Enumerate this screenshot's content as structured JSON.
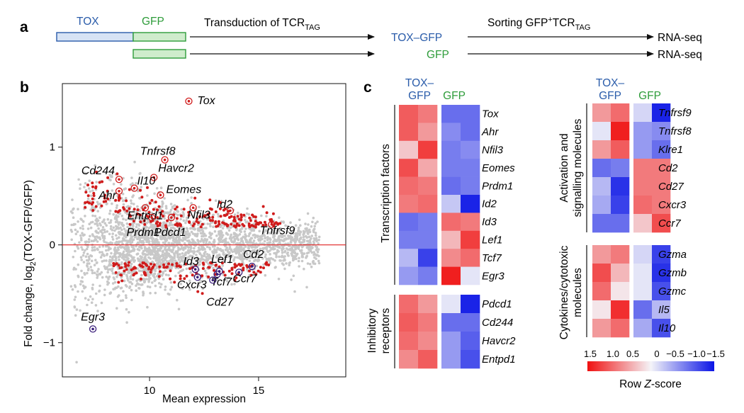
{
  "panel_a": {
    "letter": "a",
    "construct_tox": "TOX",
    "construct_gfp": "GFP",
    "transduction_prefix": "Transduction of TCR",
    "transduction_sub": "TAG",
    "product_tox_gfp": "TOX–GFP",
    "product_gfp": "GFP",
    "sorting_prefix": "Sorting GFP",
    "sorting_sup": "+",
    "sorting_mid": "TCR",
    "sorting_sub": "TAG",
    "readout_1": "RNA-seq",
    "readout_2": "RNA-seq",
    "colors": {
      "tox": "#2a5caa",
      "gfp": "#2e9c3a",
      "tox_box": "#d7e3f5",
      "gfp_box": "#cfeccc"
    }
  },
  "panel_b": {
    "letter": "b",
    "ylabel_prefix": "Fold change, log",
    "ylabel_sub": "2",
    "ylabel_suffix": "(TOX-GFP/GFP)",
    "xlabel": "Mean expression",
    "chart_data": {
      "type": "scatter",
      "xlim": [
        6,
        19
      ],
      "ylim": [
        -1.35,
        1.65
      ],
      "xticks": [
        10,
        15
      ],
      "yticks": [
        -1,
        0,
        1
      ],
      "xtick_labels": [
        "10",
        "15"
      ],
      "ytick_labels": [
        "−1",
        "0",
        "1"
      ],
      "reference_line_y": 0,
      "labeled_genes": [
        {
          "name": "Tox",
          "x": 11.8,
          "y": 1.47
        },
        {
          "name": "Tnfrsf8",
          "x": 10.7,
          "y": 0.87
        },
        {
          "name": "Havcr2",
          "x": 10.2,
          "y": 0.69
        },
        {
          "name": "Cd244",
          "x": 8.6,
          "y": 0.67
        },
        {
          "name": "Il10",
          "x": 9.3,
          "y": 0.58
        },
        {
          "name": "Eomes",
          "x": 10.5,
          "y": 0.51
        },
        {
          "name": "Ahr",
          "x": 8.6,
          "y": 0.55
        },
        {
          "name": "Entpd1",
          "x": 9.8,
          "y": 0.38
        },
        {
          "name": "Nfil3",
          "x": 12.0,
          "y": 0.38
        },
        {
          "name": "Id2",
          "x": 13.7,
          "y": 0.35
        },
        {
          "name": "Prdm1",
          "x": 10.1,
          "y": 0.28
        },
        {
          "name": "Pdcd1",
          "x": 11.0,
          "y": 0.28
        },
        {
          "name": "Tnfrsf9",
          "x": 15.6,
          "y": 0.21
        },
        {
          "name": "Id3",
          "x": 12.1,
          "y": -0.25
        },
        {
          "name": "Lef1",
          "x": 13.2,
          "y": -0.27
        },
        {
          "name": "Cd2",
          "x": 14.7,
          "y": -0.22
        },
        {
          "name": "Cxcr3",
          "x": 12.2,
          "y": -0.33
        },
        {
          "name": "Tcf7",
          "x": 13.1,
          "y": -0.3
        },
        {
          "name": "Ccr7",
          "x": 14.1,
          "y": -0.28
        },
        {
          "name": "Cd27",
          "x": 12.9,
          "y": -0.36
        },
        {
          "name": "Egr3",
          "x": 7.4,
          "y": -0.86
        }
      ],
      "colors": {
        "background_points": "#c8c8c8",
        "significant_points": "#d01c1c",
        "highlight_ring_up": "#d01c1c",
        "highlight_ring_down": "#3a1e7a",
        "zero_line": "#e02020"
      }
    }
  },
  "panel_c": {
    "letter": "c",
    "col_tox_1": "TOX–",
    "col_tox_2": "GFP",
    "col_gfp": "GFP",
    "groups": [
      {
        "label_1": "Transcription factors",
        "label_2": "",
        "genes": [
          "Tox",
          "Ahr",
          "Nfil3",
          "Eomes",
          "Prdm1",
          "Id2",
          "Id3",
          "Lef1",
          "Tcf7",
          "Egr3"
        ]
      },
      {
        "label_1": "Inhibitory",
        "label_2": "receptors",
        "genes": [
          "Pdcd1",
          "Cd244",
          "Havcr2",
          "Entpd1"
        ]
      },
      {
        "label_1": "Activation and",
        "label_2": "signalling molecules",
        "genes": [
          "Tnfrsf9",
          "Tnfrsf8",
          "Klre1",
          "Cd2",
          "Cd27",
          "Cxcr3",
          "Ccr7"
        ]
      },
      {
        "label_1": "Cytokines/cytotoxic",
        "label_2": "molecules",
        "genes": [
          "Gzma",
          "Gzmb",
          "Gzmc",
          "Il5",
          "Il10"
        ]
      }
    ],
    "chart_data": {
      "type": "heatmap",
      "columns": [
        "TOX–GFP rep 1",
        "TOX–GFP rep 2",
        "GFP rep 1",
        "GFP rep 2"
      ],
      "value_range": [
        -1.5,
        1.5
      ],
      "rows": {
        "Tox": [
          1.0,
          0.8,
          -0.9,
          -0.9
        ],
        "Ahr": [
          1.0,
          0.6,
          -0.7,
          -0.9
        ],
        "Nfil3": [
          0.3,
          1.2,
          -0.8,
          -0.7
        ],
        "Eomes": [
          1.1,
          0.5,
          -0.8,
          -0.8
        ],
        "Prdm1": [
          0.9,
          0.8,
          -0.9,
          -0.8
        ],
        "Id2": [
          0.8,
          0.9,
          -0.3,
          -1.4
        ],
        "Id3": [
          -0.9,
          -0.8,
          0.9,
          0.8
        ],
        "Lef1": [
          -0.8,
          -0.8,
          0.4,
          1.2
        ],
        "Tcf7": [
          -0.4,
          -1.2,
          0.7,
          0.9
        ],
        "Egr3": [
          -0.6,
          -0.8,
          1.4,
          -0.1
        ],
        "Pdcd1": [
          0.9,
          0.6,
          -0.1,
          -1.4
        ],
        "Cd244": [
          1.0,
          0.8,
          -0.9,
          -0.9
        ],
        "Havcr2": [
          0.9,
          0.7,
          -0.6,
          -1.0
        ],
        "Entpd1": [
          0.7,
          1.0,
          -0.6,
          -1.1
        ],
        "Tnfrsf9": [
          0.6,
          0.9,
          -0.2,
          -1.4
        ],
        "Tnfrsf8": [
          -0.1,
          1.4,
          -0.6,
          -0.7
        ],
        "Klre1": [
          0.6,
          1.0,
          -0.6,
          -0.9
        ],
        "Cd2": [
          -0.9,
          -0.8,
          0.8,
          0.8
        ],
        "Cd27": [
          -0.4,
          -1.3,
          0.8,
          0.8
        ],
        "Cxcr3": [
          -0.5,
          -1.2,
          0.9,
          0.8
        ],
        "Ccr7": [
          -0.9,
          -0.9,
          0.3,
          1.1
        ],
        "Gzma": [
          0.6,
          0.8,
          -0.2,
          -1.2
        ],
        "Gzmb": [
          1.1,
          0.4,
          -0.1,
          -1.3
        ],
        "Gzmc": [
          0.9,
          0.1,
          -0.1,
          -1.1
        ],
        "Il5": [
          0.1,
          1.3,
          -0.9,
          -0.4
        ],
        "Il10": [
          0.6,
          0.9,
          -0.5,
          -1.1
        ]
      },
      "colors": {
        "high": "#f01010",
        "mid": "#f4f4f8",
        "low": "#0a14e6"
      }
    },
    "legend": {
      "ticks": [
        "1.5",
        "1.0",
        "0.5",
        "0",
        "−0.5",
        "−1.0",
        "−1.5"
      ],
      "title_prefix": "Row ",
      "title_italic": "Z",
      "title_suffix": "-score"
    }
  }
}
